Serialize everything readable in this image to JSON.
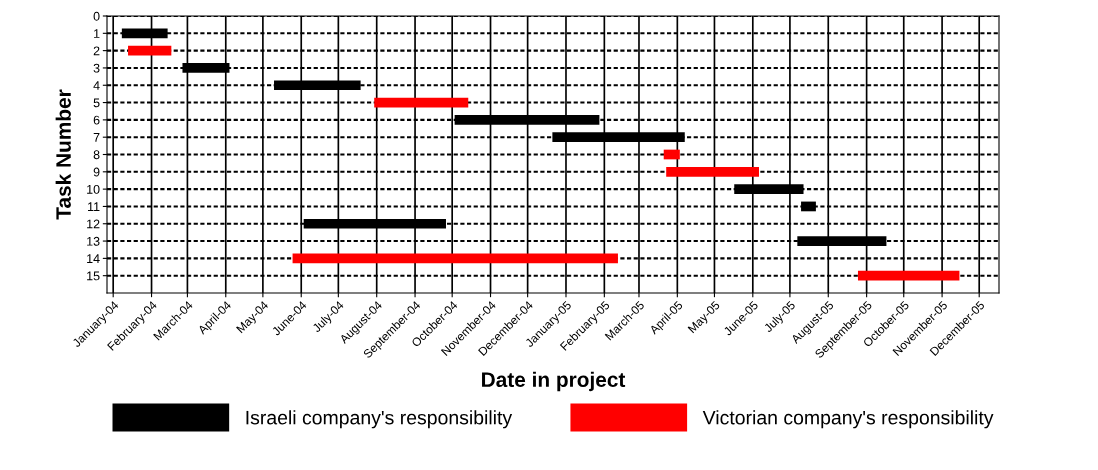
{
  "chart_data": {
    "type": "line",
    "xlabel": "Date in project",
    "ylabel": "Task Number",
    "series": [
      {
        "name": "Israeli company's responsibility",
        "color": "#000000",
        "x": [
          "2004-01-08",
          "2004-02-14"
        ],
        "values": [
          1,
          1
        ]
      },
      {
        "name": "Victorian company's responsibility",
        "color": "#ff0000",
        "x": [
          "2004-01-13",
          "2004-02-17"
        ],
        "values": [
          2,
          2
        ]
      },
      {
        "color": "#000000",
        "x": [
          "2004-02-26",
          "2004-04-04"
        ],
        "values": [
          3,
          3
        ]
      },
      {
        "color": "#000000",
        "x": [
          "2004-05-10",
          "2004-07-19"
        ],
        "values": [
          4,
          4
        ]
      },
      {
        "color": "#ff0000",
        "x": [
          "2004-07-30",
          "2004-10-14"
        ],
        "values": [
          5,
          5
        ]
      },
      {
        "color": "#000000",
        "x": [
          "2004-10-03",
          "2005-01-28"
        ],
        "values": [
          6,
          6
        ]
      },
      {
        "color": "#000000",
        "x": [
          "2004-12-21",
          "2005-04-07"
        ],
        "values": [
          7,
          7
        ]
      },
      {
        "color": "#ff0000",
        "x": [
          "2005-03-21",
          "2005-04-03"
        ],
        "values": [
          8,
          8
        ]
      },
      {
        "color": "#ff0000",
        "x": [
          "2005-03-23",
          "2005-06-06"
        ],
        "values": [
          9,
          9
        ]
      },
      {
        "color": "#000000",
        "x": [
          "2005-05-17",
          "2005-07-12"
        ],
        "values": [
          10,
          10
        ]
      },
      {
        "color": "#000000",
        "x": [
          "2005-07-10",
          "2005-07-22"
        ],
        "values": [
          11,
          11
        ]
      },
      {
        "color": "#000000",
        "x": [
          "2004-06-03",
          "2004-09-26"
        ],
        "values": [
          12,
          12
        ]
      },
      {
        "color": "#000000",
        "x": [
          "2005-07-07",
          "2005-09-17"
        ],
        "values": [
          13,
          13
        ]
      },
      {
        "color": "#ff0000",
        "x": [
          "2004-05-25",
          "2005-02-12"
        ],
        "values": [
          14,
          14
        ]
      },
      {
        "color": "#ff0000",
        "x": [
          "2005-08-25",
          "2005-11-15"
        ],
        "values": [
          15,
          15
        ]
      }
    ],
    "xlim": [
      "2003-12-27",
      "2005-12-17"
    ],
    "xticks": [
      {
        "value": "2004-01-01",
        "label": "January-04"
      },
      {
        "value": "2004-02-01",
        "label": "February-04"
      },
      {
        "value": "2004-03-01",
        "label": "March-04"
      },
      {
        "value": "2004-04-01",
        "label": "April-04"
      },
      {
        "value": "2004-05-01",
        "label": "May-04"
      },
      {
        "value": "2004-06-01",
        "label": "June-04"
      },
      {
        "value": "2004-07-01",
        "label": "July-04"
      },
      {
        "value": "2004-08-01",
        "label": "August-04"
      },
      {
        "value": "2004-09-01",
        "label": "September-04"
      },
      {
        "value": "2004-10-01",
        "label": "October-04"
      },
      {
        "value": "2004-11-01",
        "label": "November-04"
      },
      {
        "value": "2004-12-01",
        "label": "December-04"
      },
      {
        "value": "2005-01-01",
        "label": "January-05"
      },
      {
        "value": "2005-02-01",
        "label": "February-05"
      },
      {
        "value": "2005-03-01",
        "label": "March-05"
      },
      {
        "value": "2005-04-01",
        "label": "April-05"
      },
      {
        "value": "2005-05-01",
        "label": "May-05"
      },
      {
        "value": "2005-06-01",
        "label": "June-05"
      },
      {
        "value": "2005-07-01",
        "label": "July-05"
      },
      {
        "value": "2005-08-01",
        "label": "August-05"
      },
      {
        "value": "2005-09-01",
        "label": "September-05"
      },
      {
        "value": "2005-10-01",
        "label": "October-05"
      },
      {
        "value": "2005-11-01",
        "label": "November-05"
      },
      {
        "value": "2005-12-01",
        "label": "December-05"
      }
    ],
    "ylim": [
      16,
      0
    ],
    "yticks": [
      0,
      1,
      2,
      3,
      4,
      5,
      6,
      7,
      8,
      9,
      10,
      11,
      12,
      13,
      14,
      15
    ],
    "grid": true,
    "legend": "bottom",
    "line_style": "solid",
    "marker": "none"
  }
}
